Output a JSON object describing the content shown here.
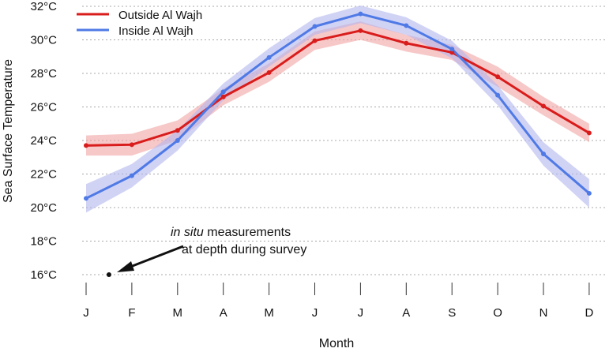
{
  "chart_data": {
    "type": "line",
    "categories": [
      "J",
      "F",
      "M",
      "A",
      "M",
      "J",
      "J",
      "A",
      "S",
      "O",
      "N",
      "D"
    ],
    "ylabel": "Sea Surface Temperature",
    "xlabel": "Month",
    "ylim": [
      15.4,
      32
    ],
    "yticks": [
      16,
      18,
      20,
      22,
      24,
      26,
      28,
      30,
      32
    ],
    "ytick_labels": [
      "16°C",
      "18°C",
      "20°C",
      "22°C",
      "24°C",
      "26°C",
      "28°C",
      "30°C",
      "32°C"
    ],
    "grid": "horizontal dotted",
    "legend_position": "top-left",
    "series": [
      {
        "name": "Outside Al Wajh",
        "color": "#d91c1c",
        "band_color": "#f2a3a3",
        "values": [
          23.7,
          23.75,
          24.6,
          26.6,
          28.05,
          29.95,
          30.55,
          29.8,
          29.25,
          27.8,
          26.05,
          24.45
        ],
        "lower": [
          23.1,
          23.1,
          24.0,
          26.1,
          27.5,
          29.4,
          30.0,
          29.3,
          28.8,
          27.2,
          25.5,
          23.9
        ],
        "upper": [
          24.3,
          24.4,
          25.2,
          27.1,
          28.6,
          30.5,
          31.1,
          30.3,
          29.7,
          28.4,
          26.6,
          25.0
        ]
      },
      {
        "name": "Inside Al Wajh",
        "color": "#4f7ae6",
        "band_color": "#b3b5ef",
        "values": [
          20.55,
          21.9,
          24.0,
          26.9,
          28.95,
          30.8,
          31.55,
          30.85,
          29.45,
          26.7,
          23.2,
          20.85
        ],
        "lower": [
          19.7,
          21.2,
          23.4,
          26.4,
          28.4,
          30.3,
          31.0,
          30.3,
          28.9,
          26.1,
          22.5,
          20.0
        ],
        "upper": [
          21.4,
          22.6,
          24.6,
          27.4,
          29.5,
          31.3,
          32.05,
          31.35,
          29.95,
          27.3,
          23.9,
          21.7
        ]
      }
    ],
    "annotation": {
      "italic_text": "in situ",
      "text_line1_rest": " measurements",
      "text_line2": "at depth during survey",
      "point": {
        "x": 1.5,
        "y": 16.0
      }
    }
  }
}
